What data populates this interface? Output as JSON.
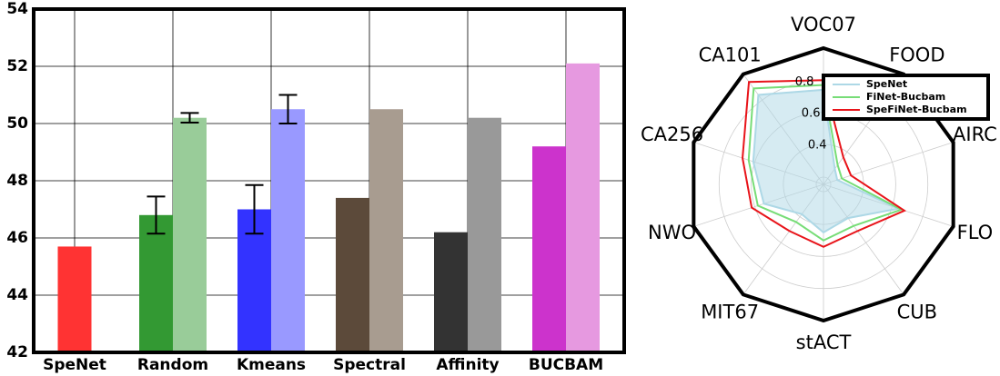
{
  "chart_data": [
    {
      "type": "bar",
      "categories": [
        "SpeNet",
        "Random",
        "Kmeans",
        "Spectral",
        "Affinity",
        "BUCBAM"
      ],
      "series": [
        {
          "colors": [
            "#ff3333",
            "#339933",
            "#3333ff",
            "#5c4a3a",
            "#333333",
            "#cc33cc"
          ],
          "values": [
            45.7,
            46.8,
            47.0,
            47.4,
            46.2,
            49.2
          ],
          "errors": [
            null,
            0.65,
            0.85,
            null,
            null,
            null
          ]
        },
        {
          "colors": [
            null,
            "#99cc99",
            "#9999ff",
            "#a89c90",
            "#999999",
            "#e699e0"
          ],
          "values": [
            null,
            50.2,
            50.5,
            50.5,
            50.2,
            52.1
          ],
          "errors": [
            null,
            0.17,
            0.5,
            null,
            null,
            null
          ]
        }
      ],
      "ylim": [
        42,
        54
      ],
      "yticks": [
        42,
        44,
        46,
        48,
        50,
        52,
        54
      ],
      "grid": true
    },
    {
      "type": "radar",
      "categories": [
        "VOC07",
        "FOOD",
        "AIRC",
        "FLO",
        "CUB",
        "stACT",
        "MIT67",
        "NWO",
        "CA256",
        "CA101"
      ],
      "series": [
        {
          "name": "SpeNet",
          "color": "#add8e6",
          "filled": true,
          "values": [
            0.74,
            0.27,
            0.24,
            0.64,
            0.41,
            0.45,
            0.38,
            0.54,
            0.61,
            0.84
          ]
        },
        {
          "name": "FiNet-Bucbam",
          "color": "#77dd77",
          "values": [
            0.77,
            0.3,
            0.27,
            0.66,
            0.47,
            0.5,
            0.44,
            0.58,
            0.64,
            0.89
          ]
        },
        {
          "name": "SpeFiNet-Bucbam",
          "color": "#e8141a",
          "values": [
            0.8,
            0.36,
            0.33,
            0.68,
            0.51,
            0.54,
            0.51,
            0.62,
            0.68,
            0.94
          ]
        }
      ],
      "rlim": [
        0.15,
        1.0
      ],
      "rticks": [
        0.4,
        0.6,
        0.8
      ],
      "legend": "upper right"
    }
  ]
}
